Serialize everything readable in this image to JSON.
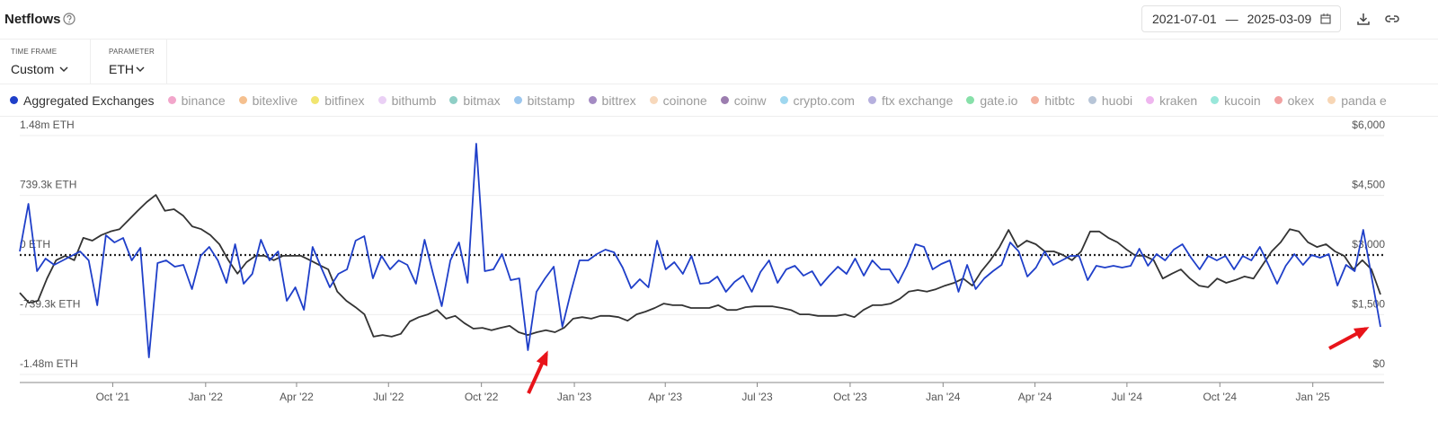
{
  "header": {
    "title": "Netflows",
    "date_separator": "—"
  },
  "controls": [
    {
      "label": "TIME FRAME",
      "value": "Custom"
    },
    {
      "label": "PARAMETER",
      "value": "ETH"
    }
  ],
  "chart_data": {
    "type": "line",
    "xlim": [
      "2021-07-01",
      "2025-03-09"
    ],
    "xticks": [
      {
        "value": "2021-10",
        "label": "Oct '21"
      },
      {
        "value": "2022-01",
        "label": "Jan '22"
      },
      {
        "value": "2022-04",
        "label": "Apr '22"
      },
      {
        "value": "2022-07",
        "label": "Jul '22"
      },
      {
        "value": "2022-10",
        "label": "Oct '22"
      },
      {
        "value": "2023-01",
        "label": "Jan '23"
      },
      {
        "value": "2023-04",
        "label": "Apr '23"
      },
      {
        "value": "2023-07",
        "label": "Jul '23"
      },
      {
        "value": "2023-10",
        "label": "Oct '23"
      },
      {
        "value": "2024-01",
        "label": "Jan '24"
      },
      {
        "value": "2024-04",
        "label": "Apr '24"
      },
      {
        "value": "2024-07",
        "label": "Jul '24"
      },
      {
        "value": "2024-10",
        "label": "Oct '24"
      },
      {
        "value": "2025-01",
        "label": "Jan '25"
      }
    ],
    "ylim": [
      -1480000,
      1480000
    ],
    "yticks": [
      {
        "value": 1480000,
        "label": "1.48m ETH"
      },
      {
        "value": 739300,
        "label": "739.3k ETH"
      },
      {
        "value": 0,
        "label": "0 ETH"
      },
      {
        "value": -739300,
        "label": "-739.3k ETH"
      },
      {
        "value": -1480000,
        "label": "-1.48m ETH"
      }
    ],
    "y2lim": [
      0,
      6000
    ],
    "y2ticks": [
      {
        "value": 6000,
        "label": "$6,000"
      },
      {
        "value": 4500,
        "label": "$4,500"
      },
      {
        "value": 3000,
        "label": "$3,000"
      },
      {
        "value": 1500,
        "label": "$1,500"
      },
      {
        "value": 0,
        "label": "$0"
      }
    ],
    "grid": true,
    "series": [
      {
        "name": "Aggregated Exchanges",
        "color": "#1f3fc9",
        "values": [
          45000,
          634000,
          -200000,
          -45000,
          -122000,
          -67000,
          -11000,
          45000,
          -67000,
          -623000,
          245000,
          156000,
          211000,
          -67000,
          89000,
          -1269000,
          -100000,
          -67000,
          -145000,
          -122000,
          -423000,
          -11000,
          100000,
          -67000,
          -345000,
          134000,
          -356000,
          -234000,
          189000,
          -67000,
          45000,
          -568000,
          -401000,
          -679000,
          100000,
          -156000,
          -401000,
          -234000,
          -178000,
          178000,
          234000,
          -289000,
          -11000,
          -178000,
          -67000,
          -122000,
          -356000,
          189000,
          -234000,
          -634000,
          -67000,
          156000,
          -345000,
          1380000,
          -200000,
          -178000,
          11000,
          -312000,
          -289000,
          -1180000,
          -456000,
          -289000,
          -145000,
          -890000,
          -456000,
          -67000,
          -67000,
          11000,
          67000,
          33000,
          -156000,
          -412000,
          -301000,
          -401000,
          178000,
          -178000,
          -89000,
          -234000,
          -11000,
          -356000,
          -345000,
          -267000,
          -456000,
          -334000,
          -256000,
          -456000,
          -211000,
          -67000,
          -345000,
          -178000,
          -134000,
          -256000,
          -200000,
          -378000,
          -256000,
          -145000,
          -234000,
          -45000,
          -256000,
          -67000,
          -178000,
          -178000,
          -345000,
          -134000,
          134000,
          100000,
          -178000,
          -111000,
          -67000,
          -456000,
          -122000,
          -423000,
          -289000,
          -200000,
          -122000,
          156000,
          45000,
          -267000,
          -156000,
          45000,
          -122000,
          -67000,
          -11000,
          -11000,
          -312000,
          -134000,
          -156000,
          -134000,
          -156000,
          -134000,
          78000,
          -134000,
          11000,
          -67000,
          67000,
          134000,
          -33000,
          -178000,
          -11000,
          -67000,
          -11000,
          -178000,
          -11000,
          -67000,
          100000,
          -122000,
          -356000,
          -134000,
          11000,
          -122000,
          0,
          -33000,
          11000,
          -378000,
          -122000,
          -200000,
          312000,
          -289000,
          -890000
        ]
      },
      {
        "color": "#333333",
        "axis": "y2",
        "values": [
          2050,
          1800,
          1850,
          2410,
          2870,
          2980,
          2870,
          3430,
          3360,
          3500,
          3590,
          3650,
          3880,
          4110,
          4330,
          4510,
          4110,
          4150,
          3990,
          3720,
          3650,
          3500,
          3270,
          2870,
          2530,
          2820,
          2980,
          2980,
          2870,
          2980,
          2980,
          2980,
          2870,
          2750,
          2640,
          2080,
          1850,
          1690,
          1510,
          950,
          990,
          950,
          1020,
          1330,
          1440,
          1510,
          1620,
          1400,
          1470,
          1290,
          1150,
          1170,
          1110,
          1170,
          1220,
          1060,
          990,
          1060,
          1110,
          1060,
          1170,
          1400,
          1440,
          1400,
          1470,
          1470,
          1440,
          1350,
          1510,
          1580,
          1670,
          1780,
          1740,
          1740,
          1670,
          1670,
          1670,
          1740,
          1620,
          1620,
          1690,
          1710,
          1710,
          1710,
          1670,
          1620,
          1510,
          1510,
          1470,
          1470,
          1470,
          1510,
          1440,
          1620,
          1740,
          1740,
          1780,
          1900,
          2080,
          2120,
          2080,
          2140,
          2230,
          2300,
          2410,
          2230,
          2590,
          2870,
          3200,
          3630,
          3200,
          3360,
          3270,
          3090,
          3090,
          3000,
          2870,
          3090,
          3590,
          3590,
          3430,
          3320,
          3140,
          2980,
          2980,
          2870,
          2410,
          2530,
          2640,
          2410,
          2230,
          2190,
          2410,
          2300,
          2370,
          2460,
          2410,
          2750,
          3090,
          3320,
          3650,
          3590,
          3320,
          3200,
          3270,
          3090,
          2980,
          2640,
          2870,
          2640,
          2010
        ]
      }
    ],
    "legend_items": [
      {
        "name": "binance",
        "color": "#f2a6cb"
      },
      {
        "name": "bitexlive",
        "color": "#f5c08f"
      },
      {
        "name": "bitfinex",
        "color": "#f1e570"
      },
      {
        "name": "bithumb",
        "color": "#ead0f5"
      },
      {
        "name": "bitmax",
        "color": "#8fcfc6"
      },
      {
        "name": "bitstamp",
        "color": "#9cc7ee"
      },
      {
        "name": "bittrex",
        "color": "#a48bc3"
      },
      {
        "name": "coinone",
        "color": "#f7d8bb"
      },
      {
        "name": "coinw",
        "color": "#9c7daf"
      },
      {
        "name": "crypto.com",
        "color": "#9fd7ef"
      },
      {
        "name": "ftx exchange",
        "color": "#b6b0de"
      },
      {
        "name": "gate.io",
        "color": "#87e0a9"
      },
      {
        "name": "hitbtc",
        "color": "#f3b19f"
      },
      {
        "name": "huobi",
        "color": "#b7c5d7"
      },
      {
        "name": "kraken",
        "color": "#efb6ef"
      },
      {
        "name": "kucoin",
        "color": "#99e7da"
      },
      {
        "name": "okex",
        "color": "#f2a1a1"
      },
      {
        "name": "panda e",
        "color": "#f7d6b5"
      }
    ]
  }
}
